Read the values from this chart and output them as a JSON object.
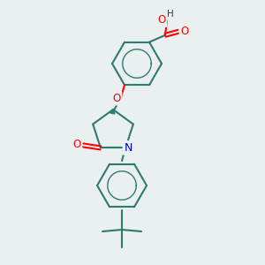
{
  "bg_color": "#eaf0f0",
  "bond_color": "#2d7a6e",
  "atom_colors": {
    "O": "#ff0000",
    "N": "#0000cc",
    "C": "#2d7a6e",
    "H": "#333333"
  }
}
